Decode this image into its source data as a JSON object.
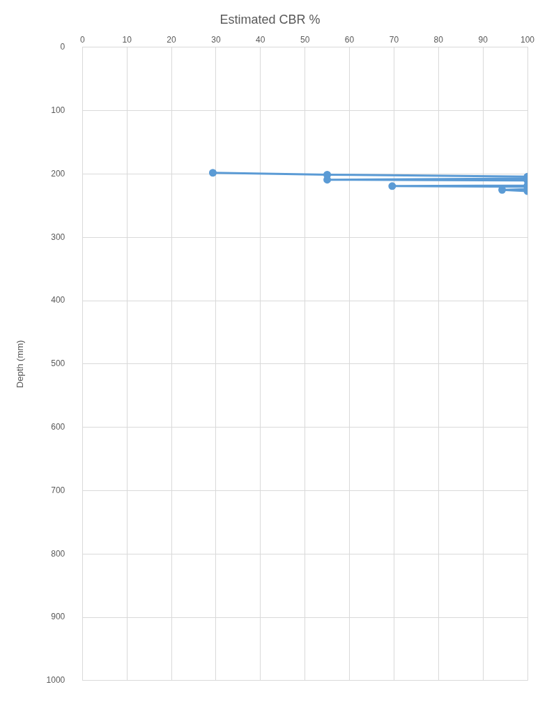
{
  "chart_data": {
    "type": "line",
    "title": "Estimated CBR %",
    "ylabel": "Depth (mm)",
    "xlim": [
      0,
      100
    ],
    "xticks": [
      0,
      10,
      20,
      30,
      40,
      50,
      60,
      70,
      80,
      90,
      100
    ],
    "ylim": [
      1000,
      0
    ],
    "yticks": [
      0,
      100,
      200,
      300,
      400,
      500,
      600,
      700,
      800,
      900,
      1000
    ],
    "grid": true,
    "marker": "circle",
    "legend": false,
    "series": [
      {
        "color": "#5b9bd5",
        "x": [
          29.3,
          55,
          100,
          100,
          55,
          100,
          100,
          69.6,
          100,
          100,
          94.3,
          100
        ],
        "values": [
          198,
          201,
          204,
          207,
          209,
          210,
          218,
          219,
          220,
          224,
          225,
          227
        ]
      }
    ]
  }
}
